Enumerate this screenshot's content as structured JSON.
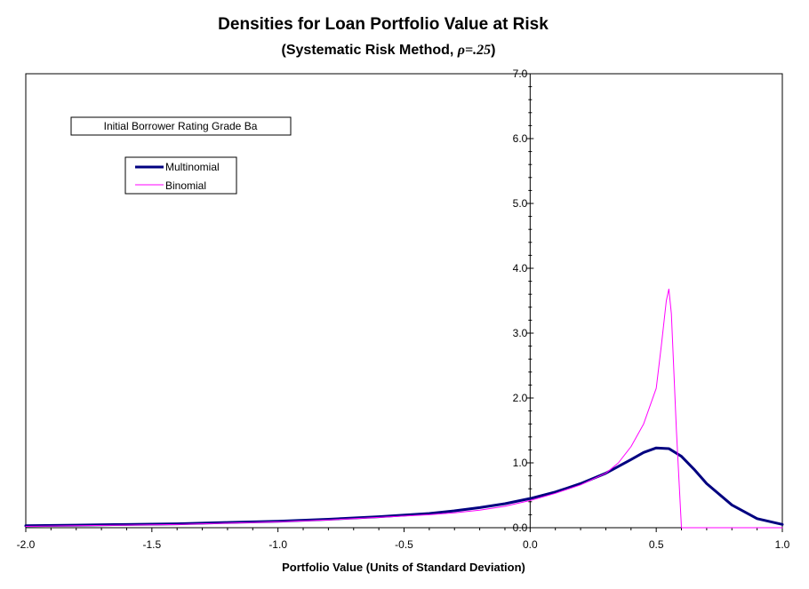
{
  "chart_data": {
    "type": "line",
    "title": "Densities for Loan Portfolio Value at Risk",
    "subtitle_prefix": "(Systematic Risk Method, ",
    "subtitle_rho": "ρ=.25",
    "subtitle_suffix": ")",
    "xlabel": "Portfolio Value (Units of Standard Deviation)",
    "ylabel": "",
    "xlim": [
      -2.0,
      1.0
    ],
    "ylim": [
      0.0,
      7.0
    ],
    "x_ticks": [
      "-2.0",
      "-1.5",
      "-1.0",
      "-0.5",
      "0.0",
      "0.5",
      "1.0"
    ],
    "y_ticks": [
      "0.0",
      "1.0",
      "2.0",
      "3.0",
      "4.0",
      "5.0",
      "6.0",
      "7.0"
    ],
    "annotation": "Initial Borrower Rating Grade Ba",
    "legend_position": "top-left",
    "grid": false,
    "series": [
      {
        "name": "Multinomial",
        "color": "#000080",
        "x": [
          -2.0,
          -1.8,
          -1.6,
          -1.4,
          -1.2,
          -1.0,
          -0.8,
          -0.6,
          -0.4,
          -0.3,
          -0.2,
          -0.1,
          0.0,
          0.1,
          0.2,
          0.3,
          0.4,
          0.45,
          0.5,
          0.55,
          0.6,
          0.65,
          0.7,
          0.8,
          0.9,
          1.0
        ],
        "y": [
          0.03,
          0.04,
          0.05,
          0.06,
          0.08,
          0.1,
          0.13,
          0.17,
          0.22,
          0.26,
          0.31,
          0.37,
          0.45,
          0.55,
          0.68,
          0.84,
          1.05,
          1.16,
          1.23,
          1.22,
          1.1,
          0.9,
          0.68,
          0.35,
          0.14,
          0.05
        ]
      },
      {
        "name": "Binomial",
        "color": "#ff00ff",
        "x": [
          -2.0,
          -1.8,
          -1.6,
          -1.4,
          -1.2,
          -1.0,
          -0.8,
          -0.6,
          -0.4,
          -0.3,
          -0.2,
          -0.1,
          0.0,
          0.1,
          0.2,
          0.3,
          0.35,
          0.4,
          0.45,
          0.5,
          0.52,
          0.54,
          0.55,
          0.56,
          0.58,
          0.6,
          0.65,
          1.0
        ],
        "y": [
          0.02,
          0.03,
          0.04,
          0.05,
          0.07,
          0.09,
          0.12,
          0.16,
          0.2,
          0.23,
          0.27,
          0.33,
          0.42,
          0.53,
          0.66,
          0.84,
          1.0,
          1.25,
          1.6,
          2.15,
          2.8,
          3.5,
          3.68,
          3.3,
          1.5,
          0.0,
          0.0,
          0.0
        ]
      }
    ]
  }
}
